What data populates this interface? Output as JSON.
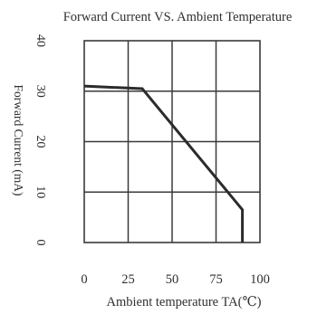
{
  "chart_data": {
    "type": "line",
    "title": "Forward Current VS. Ambient Temperature",
    "xlabel": "Ambient temperature TA(℃)",
    "ylabel": "Forward Current (mA)",
    "xlim": [
      0,
      100
    ],
    "ylim": [
      0,
      40
    ],
    "xticks": [
      "0",
      "25",
      "50",
      "75",
      "100"
    ],
    "yticks": [
      "0",
      "10",
      "20",
      "30",
      "40"
    ],
    "grid": true,
    "series": [
      {
        "x": [
          0,
          33,
          90,
          90
        ],
        "y": [
          31,
          30.5,
          6.5,
          0
        ]
      }
    ],
    "colors": {
      "line": "#2b2b2b",
      "grid": "#3a3a3a",
      "text": "#2f2f2f"
    }
  }
}
